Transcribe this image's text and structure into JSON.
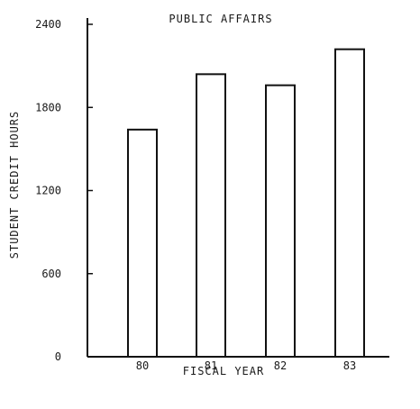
{
  "chart_data": {
    "type": "bar",
    "title": "PUBLIC AFFAIRS",
    "xlabel": "FISCAL YEAR",
    "ylabel": "STUDENT CREDIT HOURS",
    "categories": [
      "80",
      "81",
      "82",
      "83"
    ],
    "values": [
      1640,
      2040,
      1960,
      2220
    ],
    "ylim": [
      0,
      2400
    ],
    "yticks": [
      0,
      600,
      1200,
      1800,
      2400
    ],
    "ytick_labels": [
      "0",
      "600",
      "1200",
      "1800",
      "2400"
    ],
    "grid": false,
    "legend": "none"
  }
}
